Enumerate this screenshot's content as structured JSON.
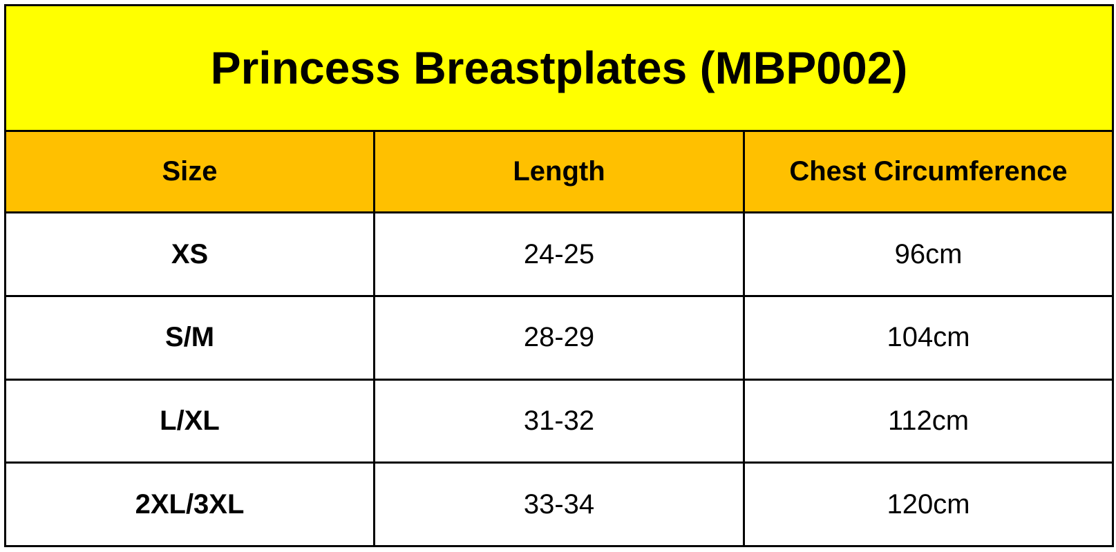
{
  "title": "Princess Breastplates (MBP002)",
  "colors": {
    "title_background": "#ffff00",
    "header_background": "#ffc000",
    "row_background": "#ffffff",
    "border": "#000000",
    "text": "#000000"
  },
  "headers": [
    "Size",
    "Length",
    "Chest Circumference"
  ],
  "rows": [
    [
      "XS",
      "24-25",
      "96cm"
    ],
    [
      "S/M",
      "28-29",
      "104cm"
    ],
    [
      "L/XL",
      "31-32",
      "112cm"
    ],
    [
      "2XL/3XL",
      "33-34",
      "120cm"
    ]
  ]
}
